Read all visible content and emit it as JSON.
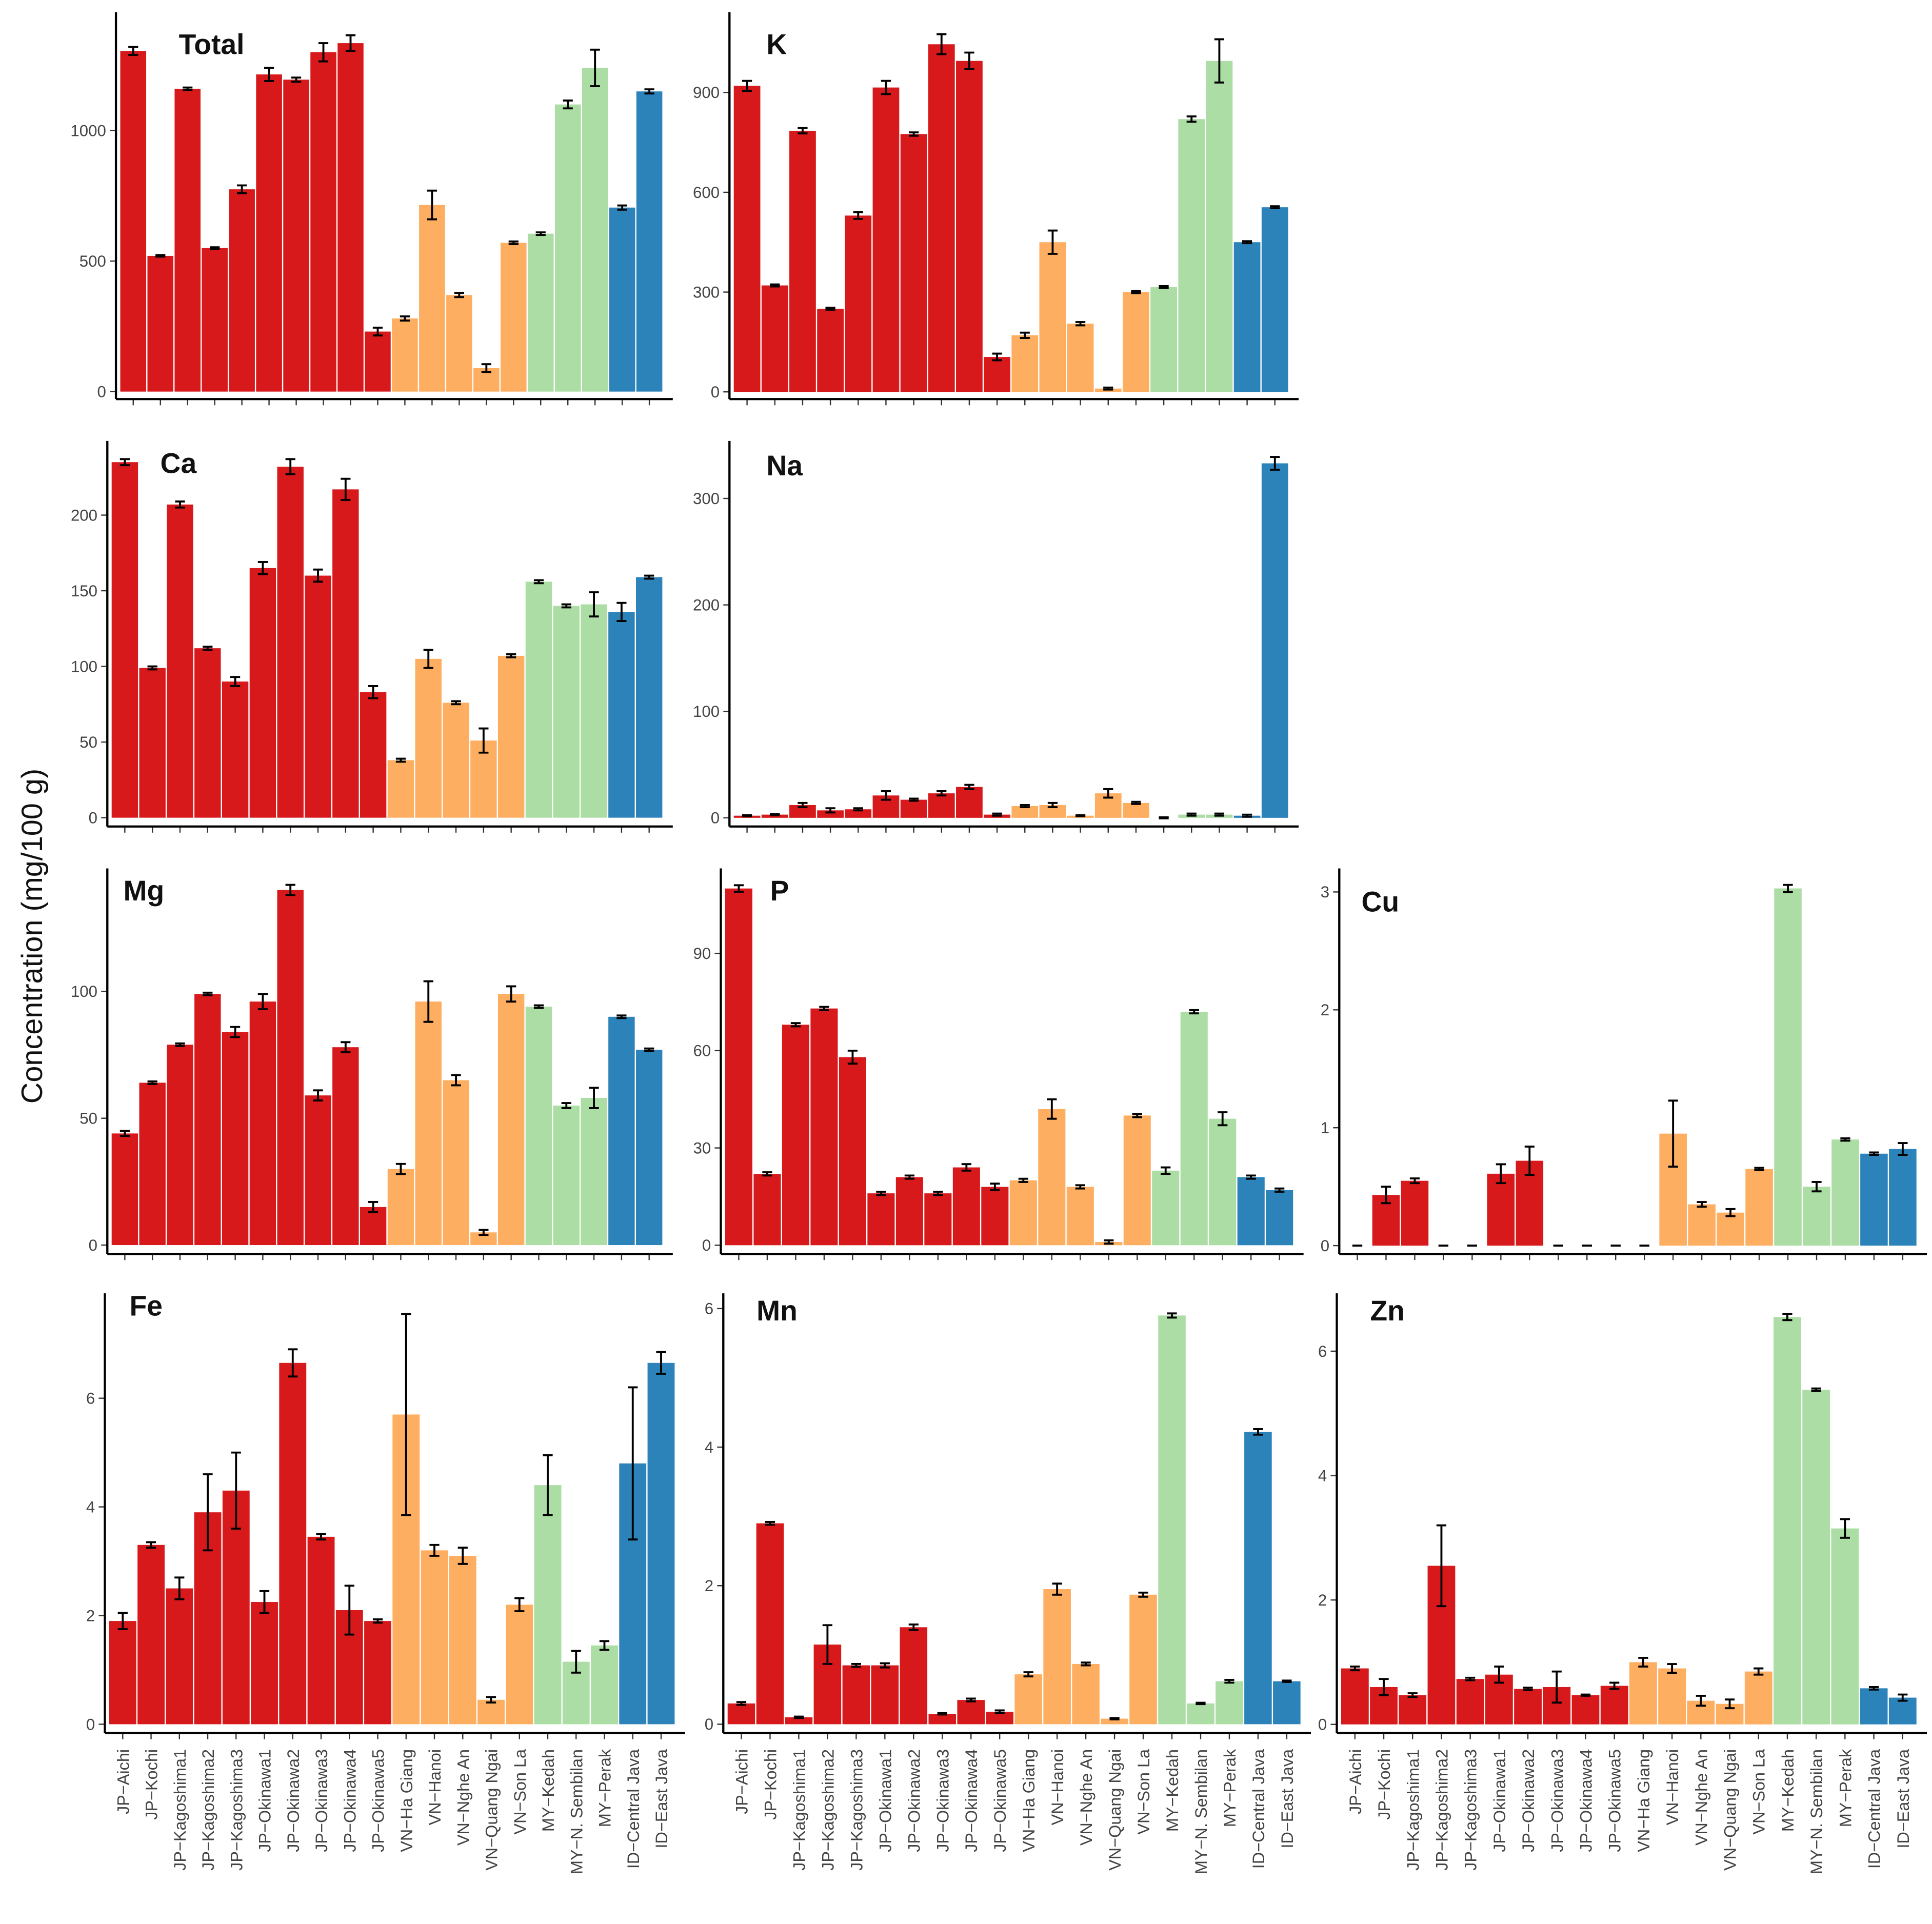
{
  "ylabel": "Concentration (mg/100 g)",
  "categories": [
    "JP−Aichi",
    "JP−Kochi",
    "JP−Kagoshima1",
    "JP−Kagoshima2",
    "JP−Kagoshima3",
    "JP−Okinawa1",
    "JP−Okinawa2",
    "JP−Okinawa3",
    "JP−Okinawa4",
    "JP−Okinawa5",
    "VN−Ha Giang",
    "VN−Hanoi",
    "VN−Nghe An",
    "VN−Quang Ngai",
    "VN−Son La",
    "MY−Kedah",
    "MY−N. Sembilan",
    "MY−Perak",
    "ID−Central Java",
    "ID−East Java"
  ],
  "colors": [
    "#d7191c",
    "#d7191c",
    "#d7191c",
    "#d7191c",
    "#d7191c",
    "#d7191c",
    "#d7191c",
    "#d7191c",
    "#d7191c",
    "#d7191c",
    "#fdae61",
    "#fdae61",
    "#fdae61",
    "#fdae61",
    "#fdae61",
    "#abdda4",
    "#abdda4",
    "#abdda4",
    "#2b83ba",
    "#2b83ba"
  ],
  "chart_data": [
    {
      "type": "bar",
      "title": "Total",
      "values": [
        1305,
        520,
        1160,
        550,
        775,
        1215,
        1195,
        1300,
        1335,
        230,
        280,
        715,
        370,
        90,
        570,
        605,
        1100,
        1240,
        705,
        1150
      ],
      "errors": [
        15,
        3,
        5,
        3,
        15,
        25,
        8,
        35,
        30,
        15,
        8,
        55,
        8,
        15,
        5,
        5,
        15,
        70,
        8,
        8
      ],
      "ylim": [
        -24,
        1453
      ],
      "yticks": [
        0,
        500,
        1000
      ]
    },
    {
      "type": "bar",
      "title": "K",
      "values": [
        920,
        320,
        785,
        250,
        530,
        915,
        775,
        1045,
        995,
        105,
        170,
        450,
        205,
        10,
        300,
        315,
        820,
        995,
        450,
        555
      ],
      "errors": [
        15,
        3,
        8,
        3,
        10,
        20,
        5,
        30,
        25,
        10,
        8,
        35,
        5,
        3,
        3,
        3,
        8,
        65,
        3,
        3
      ],
      "ylim": [
        -18,
        1141
      ],
      "yticks": [
        0,
        300,
        600,
        900
      ]
    },
    {
      "type": "bar",
      "title": "Ca",
      "values": [
        235,
        99,
        207,
        112,
        90,
        165,
        232,
        160,
        217,
        83,
        38,
        105,
        76,
        51,
        107,
        156,
        140,
        141,
        136,
        159
      ],
      "errors": [
        2,
        1,
        2,
        1,
        3,
        4,
        5,
        4,
        7,
        4,
        1,
        6,
        1,
        8,
        1,
        1,
        1,
        8,
        6,
        1
      ],
      "ylim": [
        -5,
        249
      ],
      "yticks": [
        0,
        50,
        100,
        150,
        200
      ]
    },
    {
      "type": "bar",
      "title": "Na",
      "values": [
        2,
        3,
        12,
        7,
        8,
        21,
        17,
        23,
        29,
        3,
        11,
        12,
        2,
        23,
        14,
        0,
        3,
        3,
        2,
        333
      ],
      "errors": [
        0.5,
        0.5,
        2,
        2,
        1,
        4,
        1,
        2,
        2,
        1,
        1,
        2,
        0.5,
        4,
        1,
        0.5,
        1,
        1,
        1,
        6
      ],
      "ylim": [
        -7,
        354
      ],
      "yticks": [
        0,
        100,
        200,
        300
      ]
    },
    {
      "type": "bar",
      "title": "Mg",
      "values": [
        44,
        64,
        79,
        99,
        84,
        96,
        140,
        59,
        78,
        15,
        30,
        96,
        65,
        5,
        99,
        94,
        55,
        58,
        90,
        77
      ],
      "errors": [
        1,
        0.5,
        0.5,
        0.5,
        2,
        3,
        2,
        2,
        2,
        2,
        2,
        8,
        2,
        1,
        3,
        0.5,
        1,
        4,
        0.5,
        0.5
      ],
      "ylim": [
        -3,
        148.5
      ],
      "yticks": [
        0,
        50,
        100
      ]
    },
    {
      "type": "bar",
      "title": "P",
      "values": [
        110,
        22,
        68,
        73,
        58,
        16,
        21,
        16,
        24,
        18,
        20,
        42,
        18,
        1,
        40,
        23,
        72,
        39,
        21,
        17
      ],
      "errors": [
        1,
        0.5,
        0.5,
        0.5,
        2,
        0.5,
        0.5,
        0.5,
        1,
        1,
        0.5,
        3,
        0.5,
        0.5,
        0.5,
        1,
        0.5,
        2,
        0.5,
        0.5
      ],
      "ylim": [
        -2.3,
        116.2
      ],
      "yticks": [
        0,
        30,
        60,
        90
      ]
    },
    {
      "type": "bar",
      "title": "Cu",
      "values": [
        0,
        0.43,
        0.55,
        0,
        0,
        0.61,
        0.72,
        0,
        0,
        0,
        0,
        0.95,
        0.35,
        0.28,
        0.65,
        3.03,
        0.5,
        0.9,
        0.78,
        0.82
      ],
      "errors": [
        0,
        0.07,
        0.02,
        0,
        0,
        0.08,
        0.12,
        0,
        0,
        0,
        0,
        0.28,
        0.02,
        0.03,
        0.01,
        0.03,
        0.04,
        0.01,
        0.01,
        0.05
      ],
      "ylim": [
        -0.06,
        3.2
      ],
      "yticks": [
        0,
        1,
        2,
        3
      ]
    },
    {
      "type": "bar",
      "title": "Fe",
      "values": [
        1.9,
        3.3,
        2.5,
        3.9,
        4.3,
        2.25,
        6.65,
        3.45,
        2.1,
        1.9,
        5.7,
        3.2,
        3.1,
        0.45,
        2.2,
        4.4,
        1.15,
        1.45,
        4.8,
        6.65
      ],
      "errors": [
        0.15,
        0.05,
        0.2,
        0.7,
        0.7,
        0.2,
        0.25,
        0.05,
        0.45,
        0.03,
        1.85,
        0.1,
        0.15,
        0.05,
        0.12,
        0.55,
        0.2,
        0.08,
        1.4,
        0.2
      ],
      "ylim": [
        -0.14,
        7.93
      ],
      "yticks": [
        0,
        2,
        4,
        6
      ]
    },
    {
      "type": "bar",
      "title": "Mn",
      "values": [
        0.3,
        2.9,
        0.1,
        1.15,
        0.85,
        0.85,
        1.4,
        0.15,
        0.35,
        0.18,
        0.72,
        1.95,
        0.87,
        0.08,
        1.87,
        5.9,
        0.3,
        0.62,
        4.22,
        0.62
      ],
      "errors": [
        0.02,
        0.02,
        0.01,
        0.28,
        0.02,
        0.03,
        0.04,
        0.01,
        0.02,
        0.02,
        0.03,
        0.08,
        0.02,
        0.01,
        0.03,
        0.03,
        0.01,
        0.02,
        0.04,
        0.01
      ],
      "ylim": [
        -0.11,
        6.22
      ],
      "yticks": [
        0,
        2,
        4,
        6
      ]
    },
    {
      "type": "bar",
      "title": "Zn",
      "values": [
        0.9,
        0.6,
        0.47,
        2.55,
        0.73,
        0.8,
        0.57,
        0.6,
        0.47,
        0.62,
        1.0,
        0.9,
        0.38,
        0.33,
        0.85,
        6.55,
        5.38,
        3.15,
        0.58,
        0.43
      ],
      "errors": [
        0.03,
        0.13,
        0.03,
        0.65,
        0.02,
        0.13,
        0.02,
        0.25,
        0.01,
        0.05,
        0.07,
        0.07,
        0.08,
        0.07,
        0.05,
        0.05,
        0.02,
        0.15,
        0.02,
        0.05
      ],
      "ylim": [
        -0.12,
        6.93
      ],
      "yticks": [
        0,
        2,
        4,
        6
      ]
    }
  ]
}
